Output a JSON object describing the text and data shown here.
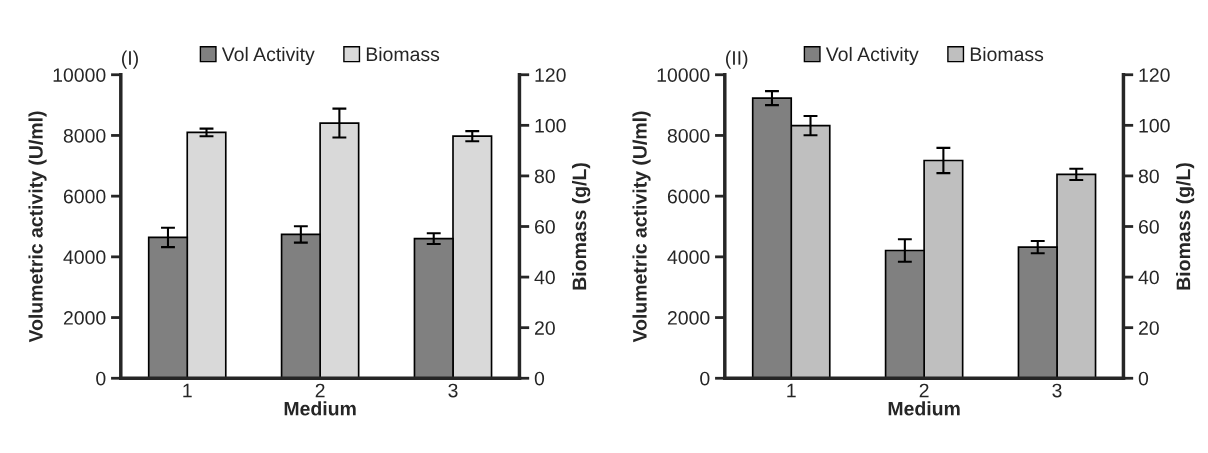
{
  "chart_data": [
    {
      "type": "bar",
      "categories": [
        "1",
        "2",
        "3"
      ],
      "xlabel": "Medium",
      "ylabel": "Volumetric activity (U/ml)",
      "y2label": "Biomass (g/L)",
      "annotations": [
        "(I)"
      ],
      "series": [
        {
          "name": "Vol Activity",
          "color": "#808080",
          "values": [
            4640,
            4740,
            4600
          ],
          "errors": [
            320,
            270,
            175
          ]
        },
        {
          "name": "Biomass",
          "color": "#d9d9d9",
          "axis": "y2",
          "values": [
            97.2,
            100.9,
            95.7
          ],
          "errors": [
            1.5,
            5.7,
            2
          ]
        }
      ],
      "ylim": [
        0,
        10000
      ],
      "yticks": [
        0,
        2000,
        4000,
        6000,
        8000,
        10000
      ],
      "y2lim": [
        0,
        120
      ],
      "y2ticks": [
        0,
        20,
        40,
        60,
        80,
        100,
        120
      ],
      "legend": "top",
      "grid": false
    },
    {
      "type": "bar",
      "categories": [
        "1",
        "2",
        "3"
      ],
      "xlabel": "Medium",
      "ylabel": "Volumetric activity (U/ml)",
      "y2label": "Biomass (g/L)",
      "annotations": [
        "(II)"
      ],
      "series": [
        {
          "name": "Vol Activity",
          "color": "#808080",
          "values": [
            9230,
            4210,
            4320
          ],
          "errors": [
            230,
            370,
            200
          ]
        },
        {
          "name": "Biomass",
          "color": "#bfbfbf",
          "axis": "y2",
          "values": [
            99.9,
            86.1,
            80.6
          ],
          "errors": [
            3.8,
            5,
            2.2
          ]
        }
      ],
      "ylim": [
        0,
        10000
      ],
      "yticks": [
        0,
        2000,
        4000,
        6000,
        8000,
        10000
      ],
      "y2lim": [
        0,
        120
      ],
      "y2ticks": [
        0,
        20,
        40,
        60,
        80,
        100,
        120
      ],
      "legend": "top",
      "grid": false
    }
  ]
}
